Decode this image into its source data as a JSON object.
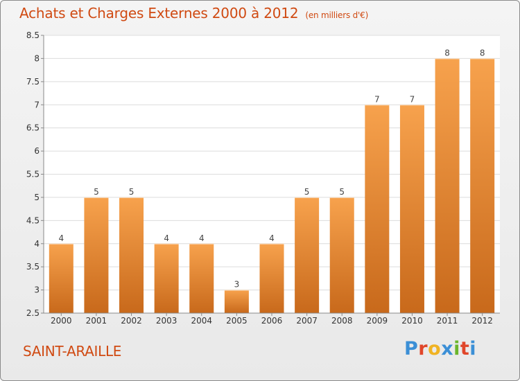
{
  "header": {
    "title": "Achats et Charges Externes 2000 à 2012",
    "unit": "(en milliers d'€)"
  },
  "footer": {
    "town": "SAINT-ARAILLE",
    "brand": "Proxiti"
  },
  "colors": {
    "title": "#d04a12",
    "bar_light": "#f7a24d",
    "bar_dark": "#c8691b",
    "logo": [
      "#3b8fd6",
      "#e0462a",
      "#f0b323",
      "#3b8fd6",
      "#6bb52c",
      "#e0462a",
      "#3b8fd6"
    ]
  },
  "chart_data": {
    "type": "bar",
    "title": "Achats et Charges Externes 2000 à 2012",
    "subtitle": "(en milliers d'€)",
    "xlabel": "",
    "ylabel": "",
    "categories": [
      "2000",
      "2001",
      "2002",
      "2003",
      "2004",
      "2005",
      "2006",
      "2007",
      "2008",
      "2009",
      "2010",
      "2011",
      "2012"
    ],
    "values": [
      4,
      5,
      5,
      4,
      4,
      3,
      4,
      5,
      5,
      7,
      7,
      8,
      8
    ],
    "ylim": [
      2.5,
      8.5
    ],
    "yticks": [
      "2.5",
      "3",
      "3.5",
      "4",
      "4.5",
      "5",
      "5.5",
      "6",
      "6.5",
      "7",
      "7.5",
      "8",
      "8.5"
    ],
    "grid": true,
    "legend": "none"
  }
}
